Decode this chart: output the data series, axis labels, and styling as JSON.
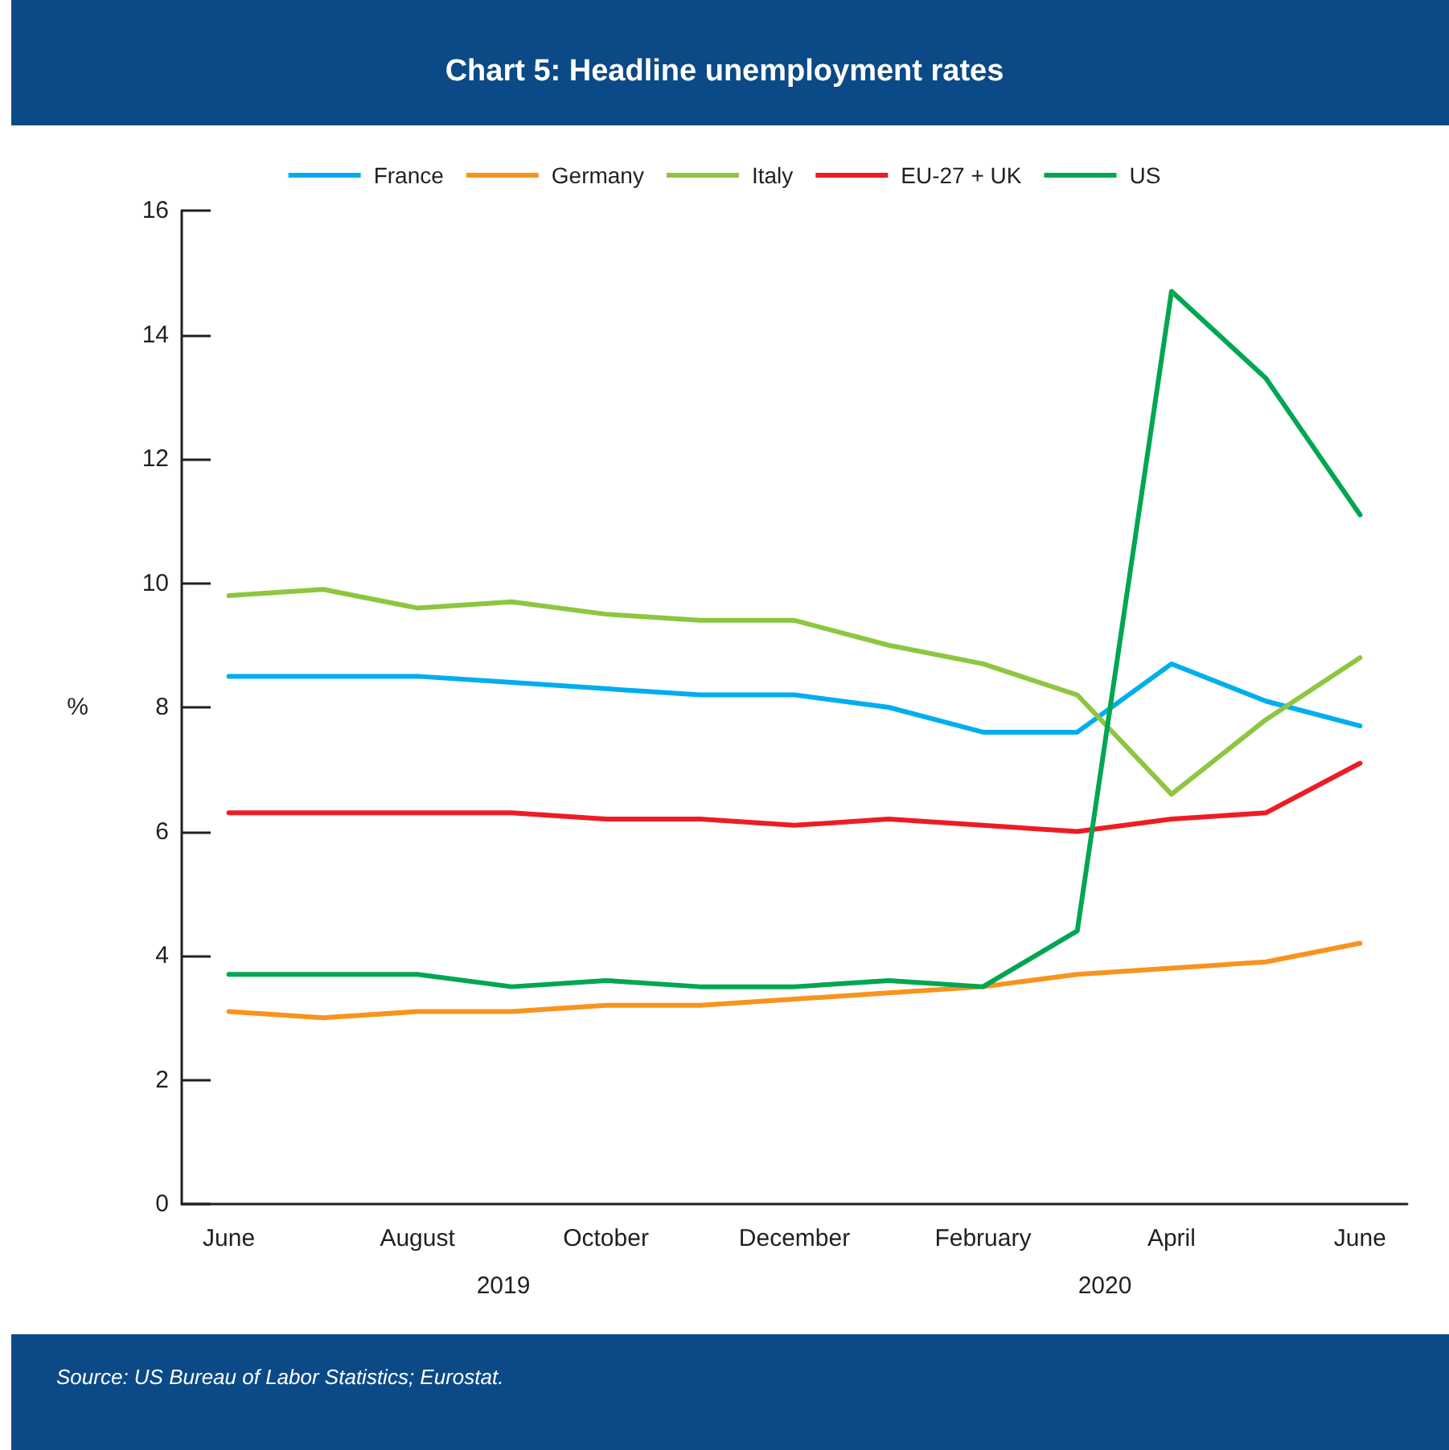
{
  "chart_data": {
    "type": "line",
    "title": "Chart 5: Headline unemployment rates",
    "ylabel": "%",
    "categories": [
      "June",
      null,
      "August",
      null,
      "October",
      null,
      "December",
      null,
      "February",
      null,
      "April",
      null,
      "June"
    ],
    "series": [
      {
        "name": "France",
        "color": "#00aeef",
        "values": [
          8.5,
          8.5,
          8.5,
          8.4,
          8.3,
          8.2,
          8.2,
          8.0,
          7.6,
          7.6,
          8.7,
          8.1,
          7.7
        ]
      },
      {
        "name": "Germany",
        "color": "#f7941d",
        "values": [
          3.1,
          3.0,
          3.1,
          3.1,
          3.2,
          3.2,
          3.3,
          3.4,
          3.5,
          3.7,
          3.8,
          3.9,
          4.2
        ]
      },
      {
        "name": "Italy",
        "color": "#8dc63f",
        "values": [
          9.8,
          9.9,
          9.6,
          9.7,
          9.5,
          9.4,
          9.4,
          9.0,
          8.7,
          8.2,
          6.6,
          7.8,
          8.8
        ]
      },
      {
        "name": "EU-27 + UK",
        "color": "#ed1c24",
        "values": [
          6.3,
          6.3,
          6.3,
          6.3,
          6.2,
          6.2,
          6.1,
          6.2,
          6.1,
          6.0,
          6.2,
          6.3,
          7.1
        ]
      },
      {
        "name": "US",
        "color": "#00a651",
        "values": [
          3.7,
          3.7,
          3.7,
          3.5,
          3.6,
          3.5,
          3.5,
          3.6,
          3.5,
          4.4,
          14.7,
          13.3,
          11.1
        ]
      }
    ],
    "ylim": [
      0,
      16
    ],
    "yticks": [
      0,
      2,
      4,
      6,
      8,
      10,
      12,
      14,
      16
    ],
    "legend": "top",
    "annotations": [
      "2019",
      "2020",
      "Source: US Bureau of Labor Statistics; Eurostat."
    ]
  }
}
